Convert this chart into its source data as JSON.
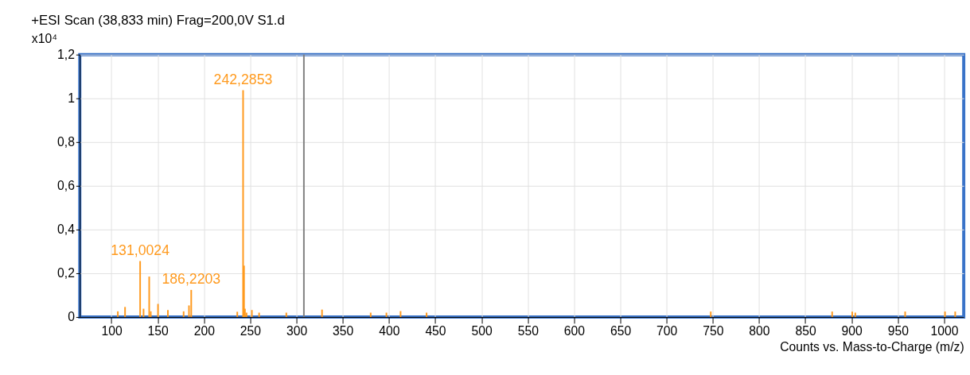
{
  "chart_data": {
    "type": "bar",
    "title": "+ESI Scan (38,833 min) Frag=200,0V S1.d",
    "xlabel": "Counts vs. Mass-to-Charge (m/z)",
    "ylabel": "x10⁴",
    "x": [
      106.9,
      114.7,
      131.0024,
      134.7,
      140.8,
      142.5,
      150.3,
      161,
      178,
      183.8,
      186.2203,
      236,
      242.2853,
      243.3,
      244.3,
      246,
      251.8,
      259.6,
      289,
      327.6,
      380.2,
      397.2,
      412.5,
      440.6,
      747.8,
      879,
      900.7,
      904,
      957.9,
      1001,
      1012
    ],
    "series": [
      {
        "color": "#ff9a1e",
        "values": [
          0.026,
          0.046,
          0.256,
          0.038,
          0.185,
          0.026,
          0.06,
          0.032,
          0.026,
          0.053,
          0.124,
          0.024,
          1.037,
          0.235,
          0.038,
          0.02,
          0.032,
          0.02,
          0.02,
          0.034,
          0.02,
          0.02,
          0.027,
          0.02,
          0.025,
          0.025,
          0.025,
          0.02,
          0.025,
          0.025,
          0.025
        ]
      }
    ],
    "annotations": [
      {
        "text": "131,0024",
        "x": 131.0024,
        "y": 0.256
      },
      {
        "text": "186,2203",
        "x": 186.2203,
        "y": 0.124
      },
      {
        "text": "242,2853",
        "x": 242.2853,
        "y": 1.037
      }
    ],
    "ref_lines": [
      {
        "axis": "x",
        "value": 308,
        "color": "#808080"
      }
    ],
    "xlim": [
      70,
      1017
    ],
    "ylim": [
      0,
      1.2
    ],
    "xticks": [
      100,
      150,
      200,
      250,
      300,
      350,
      400,
      450,
      500,
      550,
      600,
      650,
      700,
      750,
      800,
      850,
      900,
      950,
      1000
    ],
    "yticks": [
      {
        "value": 0,
        "label": "0"
      },
      {
        "value": 0.2,
        "label": "0,2"
      },
      {
        "value": 0.4,
        "label": "0,4"
      },
      {
        "value": 0.6,
        "label": "0,6"
      },
      {
        "value": 0.8,
        "label": "0,8"
      },
      {
        "value": 1,
        "label": "1"
      },
      {
        "value": 1.2,
        "label": "1,2"
      }
    ],
    "grid": true
  }
}
